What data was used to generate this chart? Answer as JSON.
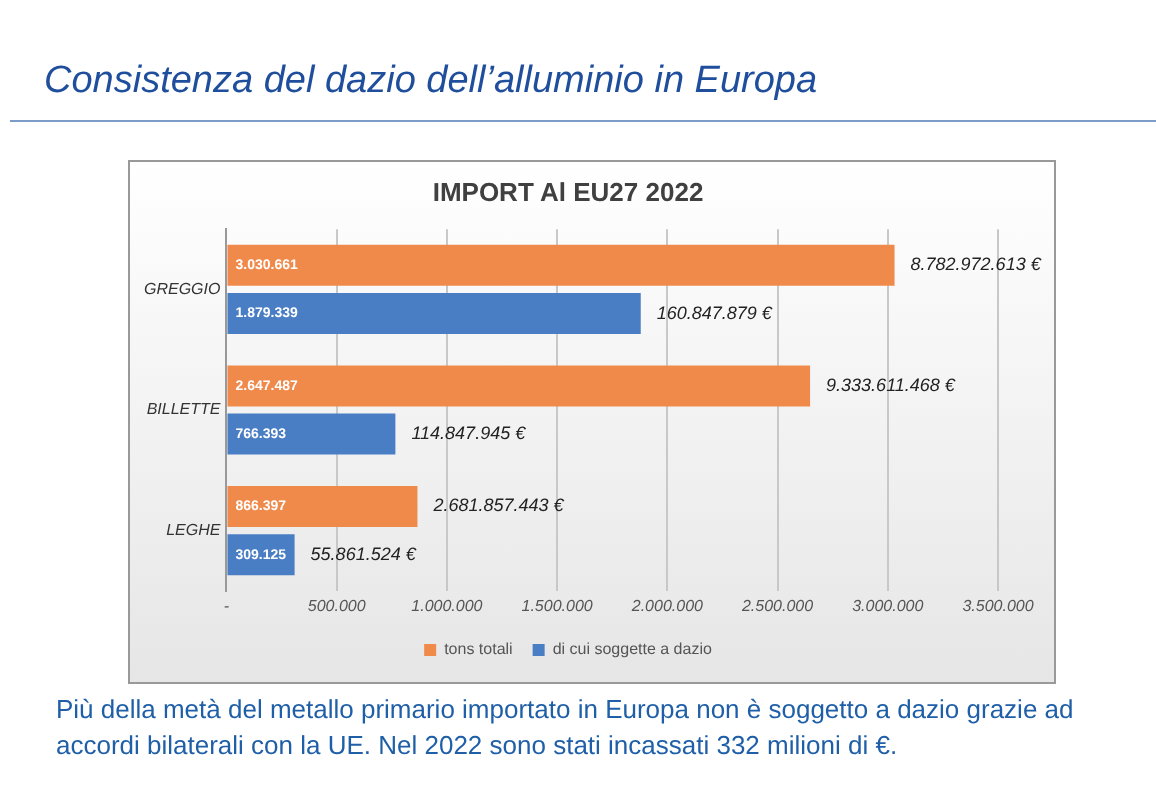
{
  "chart_data": {
    "type": "bar",
    "orientation": "horizontal",
    "title": "Consistenza del dazio dell’alluminio in Europa",
    "subtitle": "IMPORT Al EU27 2022",
    "categories": [
      "GREGGIO",
      "BILLETTE",
      "LEGHE"
    ],
    "series": [
      {
        "name": "tons totali",
        "color": "#f08a4b",
        "values": [
          3030661,
          2647487,
          866397
        ],
        "value_labels": [
          "3.030.661",
          "2.647.487",
          "866.397"
        ]
      },
      {
        "name": "di cui soggette a dazio",
        "color": "#4a7ec4",
        "values": [
          1879339,
          766393,
          309125
        ],
        "value_labels": [
          "1.879.339",
          "766.393",
          "309.125"
        ]
      }
    ],
    "xlim": [
      0,
      3500000
    ],
    "xticks": [
      {
        "value": 0,
        "label": "-"
      },
      {
        "value": 500000,
        "label": "500.000"
      },
      {
        "value": 1000000,
        "label": "1.000.000"
      },
      {
        "value": 1500000,
        "label": "1.500.000"
      },
      {
        "value": 2000000,
        "label": "2.000.000"
      },
      {
        "value": 2500000,
        "label": "2.500.000"
      },
      {
        "value": 3000000,
        "label": "3.000.000"
      },
      {
        "value": 3500000,
        "label": "3.500.000"
      }
    ],
    "grid": "x",
    "legend": "bottom",
    "annotations": [
      {
        "text": "8.782.972.613 €",
        "x": 3030661,
        "y": "GREGGIO"
      },
      {
        "text": "160.847.879 €",
        "x": 1879339,
        "y": "GREGGIO"
      },
      {
        "text": "9.333.611.468 €",
        "x": 2647487,
        "y": "BILLETTE"
      },
      {
        "text": "114.847.945 €",
        "x": 766393,
        "y": "BILLETTE"
      },
      {
        "text": "2.681.857.443 €",
        "x": 866397,
        "y": "LEGHE"
      },
      {
        "text": "55.861.524 €",
        "x": 309125,
        "y": "LEGHE"
      },
      "Più della metà del metallo primario importato in Europa non è soggetto a dazio grazie ad accordi bilaterali con la UE. Nel 2022 sono stati incassati 332 milioni di €."
    ]
  }
}
